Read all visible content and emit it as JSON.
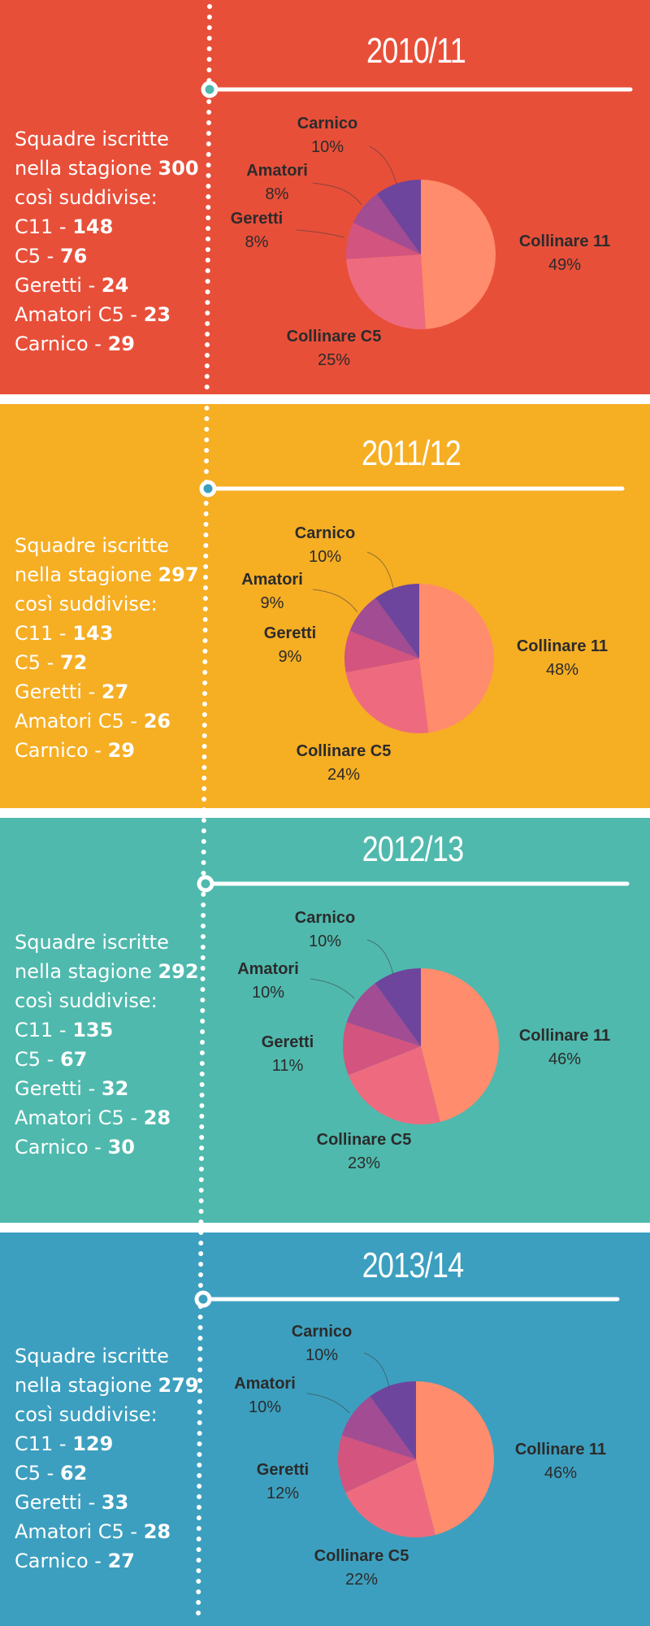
{
  "colors": {
    "section_bgs": [
      "#e84f39",
      "#f6ae23",
      "#4fb9ad",
      "#3c9fbf"
    ],
    "slice_colors": {
      "Collinare 11": "#ff8c6c",
      "Collinare C5": "#ee6b7f",
      "Geretti": "#d2547f",
      "Amatori": "#a24c93",
      "Carnico": "#6e459c"
    },
    "timeline": "#ffffff"
  },
  "labels": {
    "teams_line1": "Squadre iscritte",
    "teams_line2": "nella stagione",
    "teams_line3": "così suddivise:",
    "c11": "C11 - ",
    "c5": "C5 - ",
    "geretti": "Geretti - ",
    "amatori": "Amatori C5 - ",
    "carnico": "Carnico - "
  },
  "seasons": [
    {
      "title": "2010/11",
      "total": "300",
      "c11": "148",
      "c5": "76",
      "geretti": "24",
      "amatori": "23",
      "carnico": "29"
    },
    {
      "title": "2011/12",
      "total": "297",
      "c11": "143",
      "c5": "72",
      "geretti": "27",
      "amatori": "26",
      "carnico": "29"
    },
    {
      "title": "2012/13",
      "total": "292",
      "c11": "135",
      "c5": "67",
      "geretti": "32",
      "amatori": "28",
      "carnico": "30"
    },
    {
      "title": "2013/14",
      "total": "279",
      "c11": "129",
      "c5": "62",
      "geretti": "33",
      "amatori": "28",
      "carnico": "27"
    }
  ],
  "chart_data": [
    {
      "type": "pie",
      "title": "2010/11",
      "categories": [
        "Collinare 11",
        "Collinare C5",
        "Geretti",
        "Amatori",
        "Carnico"
      ],
      "values": [
        49,
        25,
        8,
        8,
        10
      ],
      "value_labels": [
        "49%",
        "25%",
        "8%",
        "8%",
        "10%"
      ]
    },
    {
      "type": "pie",
      "title": "2011/12",
      "categories": [
        "Collinare 11",
        "Collinare C5",
        "Geretti",
        "Amatori",
        "Carnico"
      ],
      "values": [
        48,
        24,
        9,
        9,
        10
      ],
      "value_labels": [
        "48%",
        "24%",
        "9%",
        "9%",
        "10%"
      ]
    },
    {
      "type": "pie",
      "title": "2012/13",
      "categories": [
        "Collinare 11",
        "Collinare C5",
        "Geretti",
        "Amatori",
        "Carnico"
      ],
      "values": [
        46,
        23,
        11,
        10,
        10
      ],
      "value_labels": [
        "46%",
        "23%",
        "11%",
        "10%",
        "10%"
      ]
    },
    {
      "type": "pie",
      "title": "2013/14",
      "categories": [
        "Collinare 11",
        "Collinare C5",
        "Geretti",
        "Amatori",
        "Carnico"
      ],
      "values": [
        46,
        22,
        12,
        10,
        10
      ],
      "value_labels": [
        "46%",
        "22%",
        "12%",
        "10%",
        "10%"
      ]
    }
  ]
}
